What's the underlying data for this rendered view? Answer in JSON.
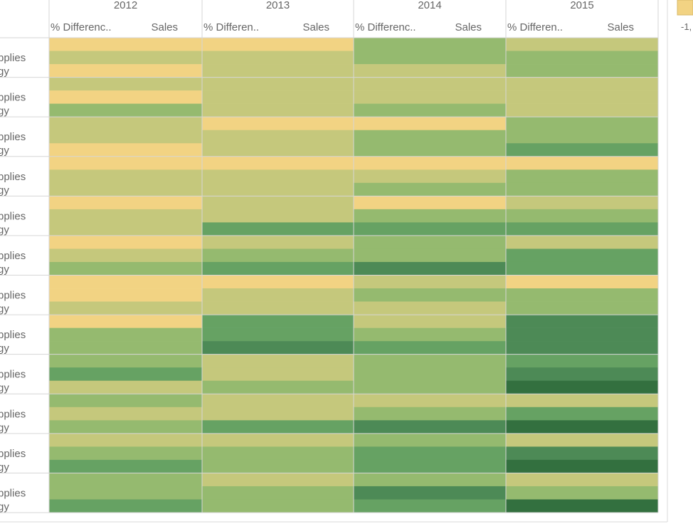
{
  "chart_data": {
    "type": "heatmap",
    "years": [
      "2012",
      "2013",
      "2014",
      "2015"
    ],
    "measures": [
      "% Differenc..",
      "Sales"
    ],
    "measure_labels_by_year": [
      [
        "% Differenc..",
        "Sales"
      ],
      [
        "% Differen..",
        "Sales"
      ],
      [
        "% Differenc..",
        "Sales"
      ],
      [
        "% Differen..",
        "Sales"
      ]
    ],
    "row_groups": [
      {
        "labels": [
          "pplies",
          "gy"
        ]
      },
      {
        "labels": [
          "pplies",
          "gy"
        ]
      },
      {
        "labels": [
          "pplies",
          "gy"
        ]
      },
      {
        "labels": [
          "pplies",
          "gy"
        ]
      },
      {
        "labels": [
          "pplies",
          "gy"
        ]
      },
      {
        "labels": [
          "pplies",
          "gy"
        ]
      },
      {
        "labels": [
          "pplies",
          "gy"
        ]
      },
      {
        "labels": [
          "pplies",
          "gy"
        ]
      },
      {
        "labels": [
          "pplies",
          "gy"
        ]
      },
      {
        "labels": [
          "pplies",
          "gy"
        ]
      },
      {
        "labels": [
          "pplies",
          "gy"
        ]
      },
      {
        "labels": [
          "pplies",
          "gy"
        ]
      }
    ],
    "color_scale": [
      "#f2d383",
      "#c5c87c",
      "#95ba6f",
      "#66a263",
      "#4d8a56",
      "#33703f"
    ],
    "legend_min_label": "-1,",
    "cells": [
      [
        [
          0,
          1,
          0
        ],
        [
          0,
          1,
          1
        ],
        [
          2,
          2,
          1
        ],
        [
          1,
          2,
          2
        ]
      ],
      [
        [
          1,
          0,
          2
        ],
        [
          1,
          1,
          1
        ],
        [
          1,
          1,
          2
        ],
        [
          1,
          1,
          1
        ]
      ],
      [
        [
          1,
          1,
          0
        ],
        [
          0,
          1,
          1
        ],
        [
          0,
          2,
          2
        ],
        [
          2,
          2,
          3
        ]
      ],
      [
        [
          0,
          1,
          1
        ],
        [
          0,
          1,
          1
        ],
        [
          0,
          1,
          2
        ],
        [
          0,
          2,
          2
        ]
      ],
      [
        [
          0,
          1,
          1
        ],
        [
          1,
          1,
          3
        ],
        [
          0,
          2,
          3
        ],
        [
          1,
          2,
          3
        ]
      ],
      [
        [
          0,
          1,
          2
        ],
        [
          1,
          2,
          3
        ],
        [
          2,
          2,
          4
        ],
        [
          1,
          3,
          3
        ]
      ],
      [
        [
          0,
          0,
          1
        ],
        [
          0,
          1,
          1
        ],
        [
          1,
          2,
          1
        ],
        [
          0,
          2,
          2
        ]
      ],
      [
        [
          0,
          2,
          2
        ],
        [
          3,
          3,
          4
        ],
        [
          1,
          2,
          3
        ],
        [
          4,
          4,
          4
        ]
      ],
      [
        [
          2,
          3,
          1
        ],
        [
          1,
          1,
          2
        ],
        [
          2,
          2,
          2
        ],
        [
          3,
          4,
          5
        ]
      ],
      [
        [
          2,
          1,
          2
        ],
        [
          1,
          1,
          3
        ],
        [
          1,
          2,
          4
        ],
        [
          1,
          3,
          5
        ]
      ],
      [
        [
          1,
          2,
          3
        ],
        [
          1,
          2,
          2
        ],
        [
          2,
          3,
          3
        ],
        [
          1,
          4,
          5
        ]
      ],
      [
        [
          2,
          2,
          3
        ],
        [
          1,
          2,
          2
        ],
        [
          2,
          4,
          3
        ],
        [
          1,
          2,
          5
        ]
      ]
    ]
  }
}
